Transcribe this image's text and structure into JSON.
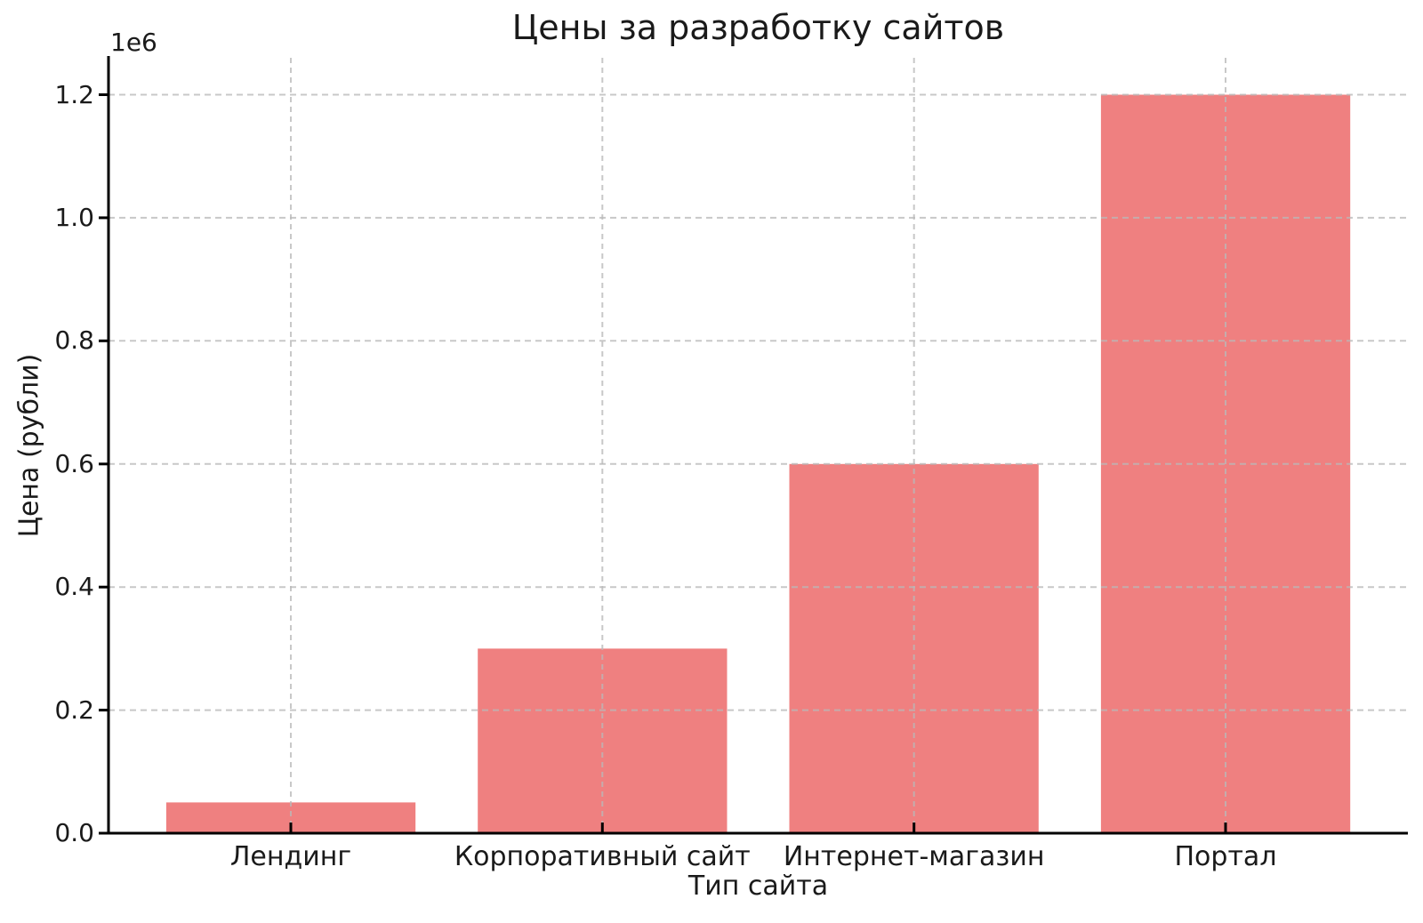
{
  "chart_data": {
    "type": "bar",
    "title": "Цены за разработку сайтов",
    "xlabel": "Тип сайта",
    "ylabel": "Цена (рубли)",
    "offset_text": "1e6",
    "categories": [
      "Лендинг",
      "Корпоративный сайт",
      "Интернет-магазин",
      "Портал"
    ],
    "values": [
      50000,
      300000,
      600000,
      1200000
    ],
    "ylim": [
      0,
      1260000
    ],
    "yticks": [
      0,
      200000,
      400000,
      600000,
      800000,
      1000000,
      1200000
    ],
    "ytick_labels": [
      "0.0",
      "0.2",
      "0.4",
      "0.6",
      "0.8",
      "1.0",
      "1.2"
    ],
    "bar_color": "#ef8080",
    "grid_color": "#c9c9c9",
    "grid_style": "dashed",
    "axis_color": "#000000",
    "text_color": "#1a1a1a",
    "legend": "none",
    "grid_on": true
  }
}
